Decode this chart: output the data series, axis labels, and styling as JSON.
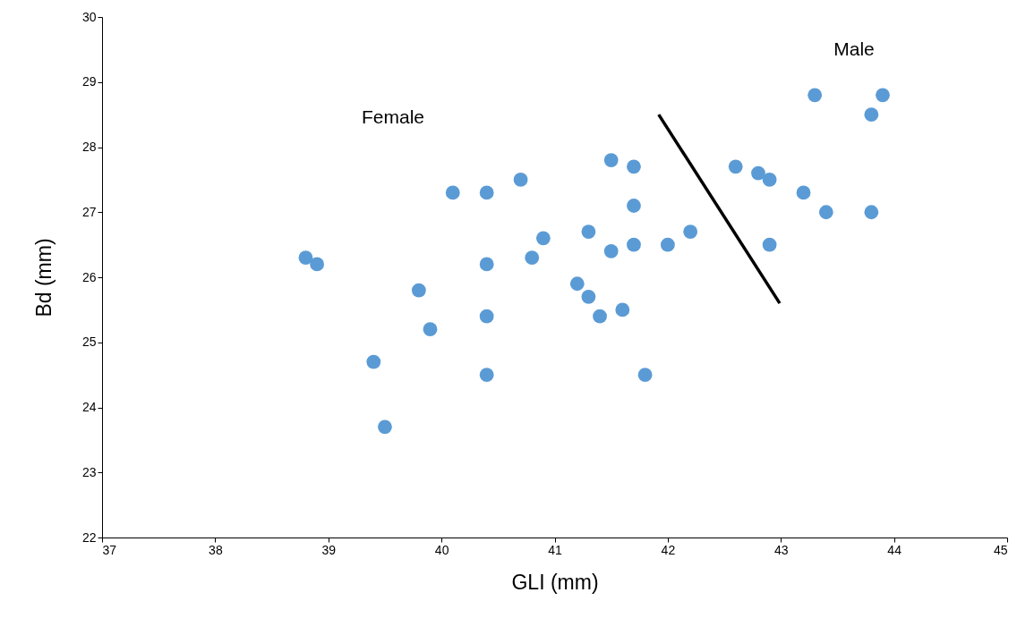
{
  "chart_data": {
    "type": "scatter",
    "xlabel": "GLI (mm)",
    "ylabel": "Bd (mm)",
    "xlim": [
      37,
      45
    ],
    "ylim": [
      22,
      30
    ],
    "xticks": [
      37,
      38,
      39,
      40,
      41,
      42,
      43,
      44,
      45
    ],
    "yticks": [
      22,
      23,
      24,
      25,
      26,
      27,
      28,
      29,
      30
    ],
    "grid": false,
    "series": [
      {
        "marker": "circle",
        "color": "#5b9bd5",
        "x": [
          38.8,
          38.9,
          39.8,
          39.9,
          39.4,
          39.5,
          40.1,
          40.4,
          40.7,
          40.4,
          40.4,
          40.4,
          40.9,
          40.8,
          41.2,
          41.3,
          41.3,
          41.4,
          41.5,
          41.7,
          41.7,
          41.5,
          41.7,
          41.6,
          41.8,
          42.0,
          42.2,
          42.6,
          42.8,
          42.9,
          42.9,
          43.2,
          43.4,
          43.8,
          43.8,
          43.9,
          43.3
        ],
        "values": [
          26.3,
          26.2,
          25.8,
          25.2,
          24.7,
          23.7,
          27.3,
          27.3,
          27.5,
          26.2,
          25.4,
          24.5,
          26.6,
          26.3,
          25.9,
          26.7,
          25.7,
          25.4,
          27.8,
          27.7,
          27.1,
          26.4,
          26.5,
          25.5,
          24.5,
          26.5,
          26.7,
          27.7,
          27.6,
          27.5,
          26.5,
          27.3,
          27.0,
          27.0,
          28.5,
          28.8,
          28.8
        ]
      },
      {
        "type": "line",
        "color": "#000000",
        "x": [
          41.92,
          42.99
        ],
        "values": [
          28.5,
          25.6
        ]
      }
    ],
    "annotations": [
      "Female",
      "Male"
    ]
  }
}
